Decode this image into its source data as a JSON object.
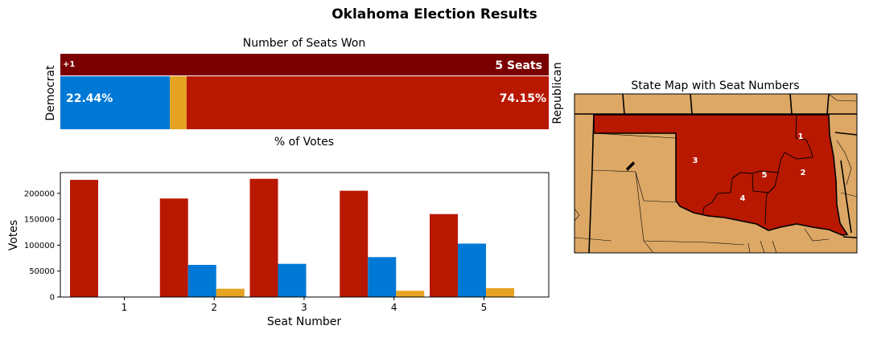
{
  "figure": {
    "title": "Oklahoma Election Results"
  },
  "colors": {
    "republican": "#b81800",
    "republican_dark": "#7b0000",
    "democrat": "#0079d6",
    "other": "#e6a321",
    "map_land": "#dda866",
    "map_border": "#000000",
    "district_label": "#ffffff"
  },
  "chart_data": [
    {
      "type": "bar",
      "subtype": "stacked-horizontal",
      "title": "Number of Seats Won",
      "xlabel": "% of Votes",
      "left_label": "Democrat",
      "right_label": "Republican",
      "seats": {
        "republican_seats": 5,
        "total_seats": 5,
        "label": "5 Seats",
        "change_label": "+1"
      },
      "vote_share": [
        {
          "party": "Democrat",
          "percent": 22.44,
          "label": "22.44%"
        },
        {
          "party": "Other",
          "percent": 3.41,
          "label": ""
        },
        {
          "party": "Republican",
          "percent": 74.15,
          "label": "74.15%"
        }
      ]
    },
    {
      "type": "bar",
      "subtype": "grouped",
      "title": "",
      "xlabel": "Seat Number",
      "ylabel": "Votes",
      "categories": [
        "1",
        "2",
        "3",
        "4",
        "5"
      ],
      "ylim": [
        0,
        240000
      ],
      "yticks": [
        0,
        50000,
        100000,
        150000,
        200000
      ],
      "ytick_labels": [
        "0",
        "50000",
        "100000",
        "150000",
        "200000"
      ],
      "series": [
        {
          "party": "republican",
          "values": [
            226000,
            190000,
            228000,
            205000,
            160000
          ]
        },
        {
          "party": "democrat",
          "values": [
            0,
            62000,
            64000,
            77000,
            103000
          ]
        },
        {
          "party": "other",
          "values": [
            0,
            16000,
            0,
            12000,
            17000
          ]
        }
      ]
    }
  ],
  "map": {
    "title": "State Map with Seat Numbers",
    "districts": [
      {
        "label": "1"
      },
      {
        "label": "2"
      },
      {
        "label": "3"
      },
      {
        "label": "4"
      },
      {
        "label": "5"
      }
    ]
  }
}
